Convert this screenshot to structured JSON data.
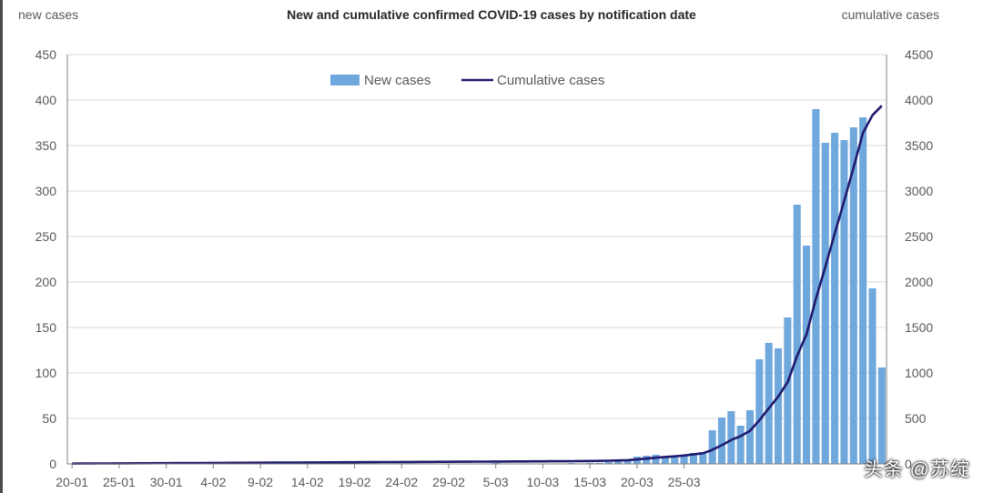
{
  "chart_data": {
    "type": "bar",
    "title": "New and cumulative confirmed COVID-19 cases by notification date",
    "y_left_label": "new cases",
    "y_right_label": "cumulative cases",
    "ylim_left": [
      0,
      450
    ],
    "ylim_right": [
      0,
      4500
    ],
    "y_left_ticks": [
      "0",
      "50",
      "100",
      "150",
      "200",
      "250",
      "300",
      "350",
      "400",
      "450"
    ],
    "y_right_ticks": [
      "0",
      "500",
      "1000",
      "1500",
      "2000",
      "2500",
      "3000",
      "3500",
      "4000",
      "4500"
    ],
    "x_tick_labels": [
      "20-01",
      "25-01",
      "30-01",
      "4-02",
      "9-02",
      "14-02",
      "19-02",
      "24-02",
      "29-02",
      "5-03",
      "10-03",
      "15-03",
      "20-03",
      "25-03"
    ],
    "legend_position": "top-center",
    "grid": true,
    "colors": {
      "bars": "#6fa8dc",
      "line": "#1f1a6e",
      "grid": "#d9d9d9",
      "axis": "#7f7f7f"
    },
    "series": [
      {
        "name": "New cases",
        "type": "bar",
        "axis": "left",
        "start_date": "20-01",
        "values": [
          0,
          0,
          0,
          0,
          0,
          0,
          0,
          0,
          0,
          0,
          0,
          0,
          0,
          0,
          0,
          0,
          0,
          0,
          0,
          0,
          0,
          0,
          0,
          0,
          0,
          0,
          0,
          0,
          0,
          0,
          0,
          0,
          0,
          0,
          0,
          0,
          0,
          0,
          0,
          0,
          0,
          0,
          0,
          0,
          0,
          1,
          0,
          0,
          0,
          0,
          0,
          0,
          0,
          1,
          0,
          1,
          1,
          2,
          3,
          3,
          8,
          9,
          10,
          8,
          7,
          9,
          12,
          13,
          37,
          51,
          58,
          42,
          59,
          115,
          133,
          127,
          161,
          285,
          240,
          390,
          353,
          364,
          356,
          370,
          381,
          193,
          106
        ]
      },
      {
        "name": "Cumulative cases",
        "type": "line",
        "axis": "right",
        "start_date": "20-01",
        "values": [
          3,
          4,
          4,
          5,
          5,
          6,
          6,
          7,
          7,
          8,
          8,
          9,
          9,
          10,
          10,
          11,
          11,
          12,
          12,
          13,
          13,
          14,
          14,
          15,
          15,
          16,
          16,
          17,
          17,
          18,
          18,
          19,
          19,
          20,
          20,
          21,
          21,
          22,
          22,
          23,
          23,
          24,
          24,
          25,
          25,
          26,
          26,
          27,
          27,
          28,
          28,
          29,
          29,
          30,
          31,
          32,
          33,
          35,
          38,
          41,
          49,
          58,
          68,
          76,
          83,
          92,
          104,
          117,
          154,
          205,
          263,
          305,
          364,
          479,
          612,
          739,
          900,
          1185,
          1425,
          1815,
          2168,
          2532,
          2888,
          3258,
          3639,
          3832,
          3938
        ]
      }
    ]
  },
  "watermark": "头条 @苏绽"
}
